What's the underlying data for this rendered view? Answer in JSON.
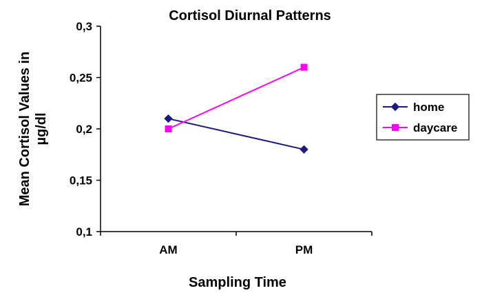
{
  "chart_data": {
    "type": "line",
    "title": "Cortisol Diurnal Patterns",
    "xlabel": "Sampling Time",
    "ylabel_lines": [
      "Mean Cortisol Values in",
      "µg/dl"
    ],
    "categories": [
      "AM",
      "PM"
    ],
    "ylim": [
      0.1,
      0.3
    ],
    "yticks": [
      {
        "value": 0.1,
        "label": "0,1"
      },
      {
        "value": 0.15,
        "label": "0,15"
      },
      {
        "value": 0.2,
        "label": "0,2"
      },
      {
        "value": 0.25,
        "label": "0,25"
      },
      {
        "value": 0.3,
        "label": "0,3"
      }
    ],
    "grid": false,
    "legend_position": "right",
    "series": [
      {
        "name": "home",
        "values": [
          0.21,
          0.18
        ],
        "color": "#1a1a80",
        "marker": "diamond"
      },
      {
        "name": "daycare",
        "values": [
          0.2,
          0.26
        ],
        "color": "#ff00ff",
        "marker": "square"
      }
    ]
  }
}
